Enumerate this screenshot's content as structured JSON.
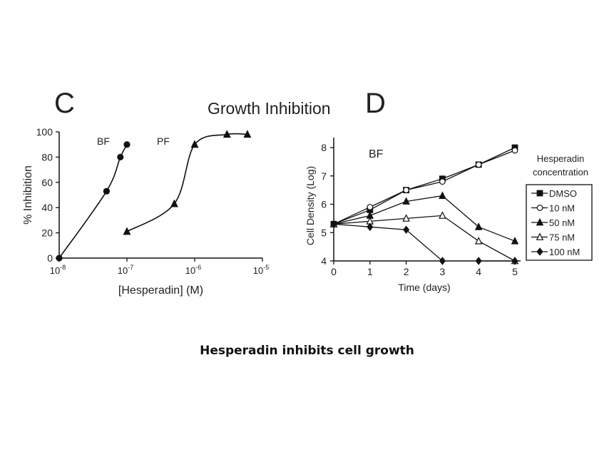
{
  "panel_letters": {
    "left": "C",
    "right": "D"
  },
  "figure_title": "Growth Inhibition",
  "caption": "Hesperadin inhibits cell growth",
  "chart_data": [
    {
      "type": "line",
      "panel": "C",
      "xlabel": "[Hesperadin] (M)",
      "ylabel": "% Inhibition",
      "xscale": "log",
      "xlim": [
        1e-08,
        1e-05
      ],
      "ylim": [
        0,
        100
      ],
      "xticks": [
        1e-08,
        1e-07,
        1e-06,
        1e-05
      ],
      "xtick_labels": [
        {
          "base": "10",
          "exp": "-8"
        },
        {
          "base": "10",
          "exp": "-7"
        },
        {
          "base": "10",
          "exp": "-6"
        },
        {
          "base": "10",
          "exp": "-5"
        }
      ],
      "yticks": [
        0,
        20,
        40,
        60,
        80,
        100
      ],
      "grid": false,
      "series": [
        {
          "name": "BF",
          "marker": "circle",
          "x": [
            1e-08,
            5e-08,
            8e-08,
            1e-07
          ],
          "y": [
            0,
            53,
            80,
            90
          ]
        },
        {
          "name": "PF",
          "marker": "triangle",
          "x": [
            1e-07,
            5e-07,
            1e-06,
            3e-06,
            6e-06
          ],
          "y": [
            21,
            43,
            90,
            98,
            98
          ]
        }
      ]
    },
    {
      "type": "line",
      "panel": "D",
      "annotation": "BF",
      "xlabel": "Time (days)",
      "ylabel": "Cell Density (Log)",
      "xlim": [
        0,
        5
      ],
      "ylim": [
        4,
        8
      ],
      "xticks": [
        0,
        1,
        2,
        3,
        4,
        5
      ],
      "yticks": [
        4,
        5,
        6,
        7,
        8
      ],
      "grid": false,
      "legend_title": [
        "Hesperadin",
        "concentration"
      ],
      "legend_position": "right",
      "series": [
        {
          "name": "DMSO",
          "marker": "square",
          "x": [
            0,
            1,
            2,
            3,
            4,
            5
          ],
          "y": [
            5.3,
            5.8,
            6.5,
            6.9,
            7.4,
            8.0
          ]
        },
        {
          "name": "10 nM",
          "marker": "circle-open",
          "x": [
            0,
            1,
            2,
            3,
            4,
            5
          ],
          "y": [
            5.3,
            5.9,
            6.5,
            6.8,
            7.4,
            7.9
          ]
        },
        {
          "name": "50 nM",
          "marker": "triangle",
          "x": [
            0,
            1,
            2,
            3,
            4,
            5
          ],
          "y": [
            5.3,
            5.6,
            6.1,
            6.3,
            5.2,
            4.7
          ]
        },
        {
          "name": "75 nM",
          "marker": "triangle-open",
          "x": [
            0,
            1,
            2,
            3,
            4,
            5
          ],
          "y": [
            5.3,
            5.4,
            5.5,
            5.6,
            4.7,
            4.0
          ]
        },
        {
          "name": "100 nM",
          "marker": "diamond",
          "x": [
            0,
            1,
            2,
            3
          ],
          "y": [
            5.3,
            5.2,
            5.1,
            4.0
          ]
        },
        {
          "name": "",
          "marker": "diamond",
          "x": [
            4,
            5
          ],
          "y": [
            4.0,
            4.0
          ]
        }
      ]
    }
  ]
}
